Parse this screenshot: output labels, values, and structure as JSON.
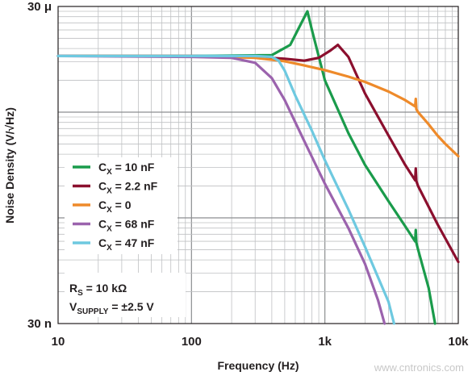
{
  "chart_data": {
    "type": "line",
    "title": "",
    "xlabel": "Frequency (Hz)",
    "ylabel": "Noise Density (V/√Hz)",
    "x_scale": "log",
    "y_scale": "log",
    "xlim": [
      10,
      10000
    ],
    "ylim": [
      3e-08,
      3e-05
    ],
    "grid": true,
    "legend_position": "left-middle",
    "x_ticks": [
      {
        "value": 10,
        "label": "10"
      },
      {
        "value": 100,
        "label": "100"
      },
      {
        "value": 1000,
        "label": "1k"
      },
      {
        "value": 10000,
        "label": "10k"
      }
    ],
    "y_ticks": [
      {
        "value": 3e-05,
        "label": "30 μ"
      },
      {
        "value": 3e-08,
        "label": "30 n"
      }
    ],
    "series": [
      {
        "name": "CX = 10 nF",
        "name_main": "C",
        "name_sub": "X",
        "name_rest": " = 10 nF",
        "color": "#1a9b4b",
        "x": [
          10,
          100,
          400,
          550,
          680,
          740,
          800,
          1000,
          1500,
          2000,
          3000,
          4000,
          4750,
          4800,
          4850,
          5000,
          6000,
          6700
        ],
        "y": [
          1.02e-05,
          1.02e-05,
          1.04e-05,
          1.3e-05,
          2.2e-05,
          2.7e-05,
          1.8e-05,
          6e-06,
          1.9e-06,
          9.5e-07,
          4.3e-07,
          2.5e-07,
          1.8e-07,
          2.3e-07,
          1.75e-07,
          1.5e-07,
          6.5e-08,
          3e-08
        ]
      },
      {
        "name": "CX = 2.2 nF",
        "name_main": "C",
        "name_sub": "X",
        "name_rest": " = 2.2 nF",
        "color": "#8b0f2e",
        "x": [
          10,
          100,
          300,
          500,
          700,
          900,
          1100,
          1250,
          1500,
          2000,
          3000,
          4000,
          4750,
          4800,
          4850,
          5000,
          7000,
          10000
        ],
        "y": [
          1.02e-05,
          1.02e-05,
          1e-05,
          9.6e-06,
          9.2e-06,
          9.8e-06,
          1.15e-05,
          1.3e-05,
          1e-05,
          4.5e-06,
          1.8e-06,
          9.5e-07,
          6.8e-07,
          8.8e-07,
          6.7e-07,
          6e-07,
          2.6e-07,
          1.15e-07
        ]
      },
      {
        "name": "CX = 0",
        "name_main": "C",
        "name_sub": "X",
        "name_rest": " = 0",
        "color": "#ee8a2a",
        "x": [
          10,
          100,
          300,
          500,
          700,
          1000,
          1500,
          2000,
          3000,
          4000,
          4750,
          4800,
          4850,
          5000,
          6000,
          7000,
          8000,
          10000
        ],
        "y": [
          1.02e-05,
          1.02e-05,
          9.8e-06,
          9.1e-06,
          8.3e-06,
          7.5e-06,
          6.5e-06,
          5.8e-06,
          4.7e-06,
          3.9e-06,
          3.4e-06,
          4e-06,
          3.2e-06,
          3e-06,
          2.3e-06,
          1.8e-06,
          1.5e-06,
          1.15e-06
        ]
      },
      {
        "name": "CX = 68 nF",
        "name_main": "C",
        "name_sub": "X",
        "name_rest": " = 68 nF",
        "color": "#9b63ad",
        "x": [
          10,
          100,
          200,
          300,
          400,
          500,
          700,
          1000,
          1500,
          2000,
          2500,
          2800
        ],
        "y": [
          1.02e-05,
          1e-05,
          9.8e-06,
          8.8e-06,
          6.3e-06,
          3.9e-06,
          1.6e-06,
          6.3e-07,
          2.4e-07,
          1.1e-07,
          5e-08,
          3e-08
        ]
      },
      {
        "name": "CX = 47 nF",
        "name_main": "C",
        "name_sub": "X",
        "name_rest": " = 47 nF",
        "color": "#6ec9e0",
        "x": [
          10,
          100,
          300,
          400,
          450,
          500,
          600,
          800,
          1000,
          1500,
          2000,
          3000,
          3300
        ],
        "y": [
          1.02e-05,
          1.02e-05,
          1.02e-05,
          1e-05,
          9.2e-06,
          7.4e-06,
          4.3e-06,
          2e-06,
          1.05e-06,
          3.6e-07,
          1.6e-07,
          4.8e-08,
          3e-08
        ]
      }
    ],
    "annotations": [
      {
        "main": "R",
        "sub": "S",
        "rest": " = 10 kΩ"
      },
      {
        "main": "V",
        "sub": "SUPPLY",
        "rest": " = ±2.5 V"
      }
    ]
  },
  "watermark": "www.cntronics.com"
}
